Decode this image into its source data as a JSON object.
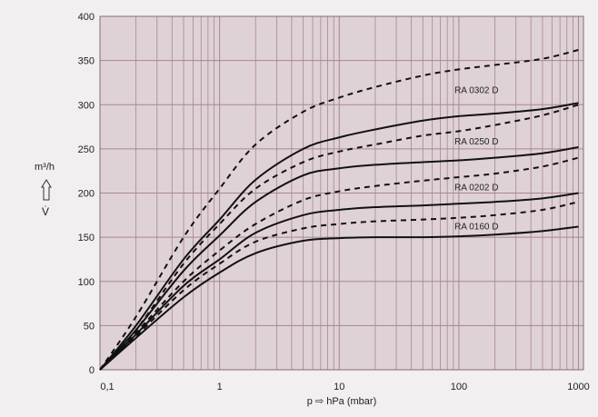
{
  "chart_data": {
    "type": "line",
    "title": "",
    "xlabel": "p ⇨ hPa (mbar)",
    "ylabel_unit": "m³/h",
    "ylabel_symbol": "V̇",
    "xscale": "log",
    "xlim": [
      0.1,
      1100
    ],
    "ylim": [
      0,
      400
    ],
    "grid": true,
    "x_ticks": [
      {
        "v": 0.1,
        "label": "0,1"
      },
      {
        "v": 1,
        "label": "1"
      },
      {
        "v": 10,
        "label": "10"
      },
      {
        "v": 100,
        "label": "100"
      },
      {
        "v": 1000,
        "label": "1000"
      }
    ],
    "y_ticks": [
      0,
      50,
      100,
      150,
      200,
      250,
      300,
      350,
      400
    ],
    "x": [
      0.1,
      0.2,
      0.5,
      1,
      2,
      5,
      10,
      20,
      50,
      100,
      200,
      500,
      1000
    ],
    "series": [
      {
        "label": "RA 0302 D",
        "style": "dashed",
        "values": [
          0,
          60,
          150,
          205,
          255,
          292,
          308,
          320,
          333,
          340,
          345,
          352,
          362
        ]
      },
      {
        "label": "RA 0302 D",
        "style": "solid",
        "values": [
          0,
          50,
          125,
          170,
          215,
          250,
          263,
          272,
          282,
          287,
          290,
          295,
          302
        ]
      },
      {
        "label": "RA 0250 D",
        "style": "dashed",
        "values": [
          0,
          45,
          120,
          165,
          205,
          235,
          247,
          255,
          265,
          270,
          277,
          288,
          300
        ]
      },
      {
        "label": "RA 0250 D",
        "style": "solid",
        "values": [
          0,
          45,
          112,
          152,
          190,
          220,
          228,
          232,
          235,
          237,
          240,
          245,
          252
        ]
      },
      {
        "label": "RA 0202 D",
        "style": "dashed",
        "values": [
          0,
          42,
          100,
          135,
          165,
          192,
          202,
          208,
          214,
          218,
          222,
          230,
          240
        ]
      },
      {
        "label": "RA 0202 D",
        "style": "solid",
        "values": [
          0,
          40,
          95,
          125,
          155,
          175,
          181,
          184,
          186,
          188,
          190,
          194,
          200
        ]
      },
      {
        "label": "RA 0160 D",
        "style": "dashed",
        "values": [
          0,
          38,
          90,
          120,
          145,
          160,
          165,
          168,
          170,
          172,
          175,
          181,
          190
        ]
      },
      {
        "label": "RA 0160 D",
        "style": "solid",
        "values": [
          0,
          36,
          82,
          110,
          132,
          146,
          149,
          150,
          150,
          151,
          153,
          157,
          162
        ]
      }
    ],
    "annotations": [
      {
        "text": "RA 0302 D",
        "x": 150,
        "y": 313
      },
      {
        "text": "RA 0250 D",
        "x": 150,
        "y": 255
      },
      {
        "text": "RA 0202 D",
        "x": 150,
        "y": 203
      },
      {
        "text": "RA 0160 D",
        "x": 150,
        "y": 159
      }
    ],
    "colors": {
      "plot_bg": "#dfd2d7",
      "grid": "#a88592",
      "line": "#111111",
      "page_bg": "#f1efef"
    }
  }
}
